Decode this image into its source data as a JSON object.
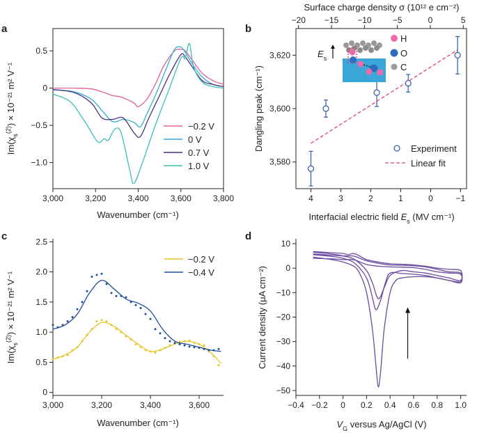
{
  "chart_data": [
    {
      "panel": "a",
      "type": "line",
      "xlabel": "Wavenumber (cm⁻¹)",
      "ylabel": "Im(χs(2)) × 10⁻²¹ m² V⁻¹",
      "xlim": [
        3000,
        3800
      ],
      "ylim": [
        -1.35,
        0.8
      ],
      "xticks": [
        3000,
        3200,
        3400,
        3600,
        3800
      ],
      "xtick_labels": [
        "3,000",
        "3,200",
        "3,400",
        "3,600",
        "3,800"
      ],
      "yticks": [
        0.5,
        0,
        -0.5,
        -1.0
      ],
      "ytick_labels": [
        "0.5",
        "0",
        "−0.5",
        "−1.0"
      ],
      "series": [
        {
          "name": "−0.2 V",
          "color": "#e0609a",
          "x": [
            3000,
            3100,
            3180,
            3230,
            3280,
            3320,
            3380,
            3400,
            3440,
            3480,
            3520,
            3570,
            3600,
            3620,
            3660,
            3700,
            3750,
            3800
          ],
          "y": [
            0,
            0,
            -0.01,
            -0.05,
            -0.1,
            -0.12,
            -0.2,
            -0.25,
            -0.15,
            0.05,
            0.3,
            0.5,
            0.52,
            0.5,
            0.35,
            0.2,
            0.1,
            0.05
          ]
        },
        {
          "name": "0 V",
          "color": "#2fb0d8",
          "x": [
            3000,
            3100,
            3180,
            3230,
            3280,
            3330,
            3380,
            3410,
            3440,
            3480,
            3530,
            3570,
            3600,
            3620,
            3660,
            3700,
            3750,
            3800
          ],
          "y": [
            -0.02,
            -0.05,
            -0.15,
            -0.3,
            -0.45,
            -0.42,
            -0.46,
            -0.52,
            -0.35,
            -0.1,
            0.25,
            0.52,
            0.55,
            0.48,
            0.3,
            0.15,
            0.05,
            0.02
          ]
        },
        {
          "name": "0.7 V",
          "color": "#4c2f7a",
          "x": [
            3000,
            3100,
            3180,
            3230,
            3280,
            3330,
            3380,
            3410,
            3450,
            3500,
            3550,
            3600,
            3620,
            3650,
            3700,
            3750,
            3800
          ],
          "y": [
            -0.02,
            -0.06,
            -0.2,
            -0.4,
            -0.42,
            -0.4,
            -0.6,
            -0.65,
            -0.4,
            -0.1,
            0.2,
            0.45,
            0.42,
            0.3,
            0.1,
            0.05,
            0.02
          ]
        },
        {
          "name": "1.0 V",
          "color": "#3cbfb8",
          "x": [
            3000,
            3080,
            3150,
            3210,
            3240,
            3260,
            3290,
            3320,
            3360,
            3380,
            3420,
            3480,
            3540,
            3600,
            3620,
            3640,
            3660,
            3700,
            3750,
            3800
          ],
          "y": [
            -0.08,
            -0.18,
            -0.45,
            -0.72,
            -0.68,
            -0.7,
            -0.55,
            -0.6,
            -1.1,
            -1.28,
            -1.0,
            -0.5,
            -0.05,
            0.4,
            0.4,
            0.6,
            0.28,
            0.08,
            0.02,
            0
          ]
        }
      ]
    },
    {
      "panel": "b",
      "type": "scatter",
      "xlabel": "Interfacial electric field E_s (MV cm⁻¹)",
      "ylabel": "Dangling peak (cm⁻¹)",
      "top_xlabel": "Surface charge density σ (10¹² e cm⁻²)",
      "xlim": [
        4.5,
        -1.2
      ],
      "ylim": [
        3570,
        3630
      ],
      "xticks": [
        4,
        3,
        2,
        1,
        0,
        -1
      ],
      "xtick_labels": [
        "4",
        "3",
        "2",
        "1",
        "0",
        "−1"
      ],
      "yticks": [
        3580,
        3600,
        3620
      ],
      "ytick_labels": [
        "3,580",
        "3,600",
        "3,620"
      ],
      "top_xticks": [
        -20,
        -15,
        -10,
        -5,
        0,
        5
      ],
      "top_xtick_labels": [
        "−20",
        "−15",
        "−10",
        "−5",
        "0",
        "5"
      ],
      "top_xlim": [
        -20.4,
        5.5
      ],
      "points": [
        {
          "x": 4.0,
          "y": 3577.5,
          "err": 6.5
        },
        {
          "x": 3.5,
          "y": 3600,
          "err": 3.2
        },
        {
          "x": 1.8,
          "y": 3606,
          "err": 5.2
        },
        {
          "x": 0.75,
          "y": 3609.5,
          "err": 3.3
        },
        {
          "x": -0.9,
          "y": 3620,
          "err": 7
        }
      ],
      "fit": {
        "x": [
          4.0,
          -0.9
        ],
        "y": [
          3587,
          3622
        ]
      },
      "legend": {
        "experiment": "Experiment",
        "fit": "Linear fit"
      },
      "inset_labels": {
        "h": "H",
        "o": "O",
        "c": "C",
        "field": "E",
        "field_sub": "s"
      },
      "colors": {
        "points": "#2e5aa8",
        "fit": "#e0407e"
      }
    },
    {
      "panel": "c",
      "type": "line",
      "xlabel": "Wavenumber (cm⁻¹)",
      "ylabel": "Im(χs(2)) × 10⁻²¹ m² V⁻¹",
      "xlim": [
        3000,
        3700
      ],
      "ylim": [
        -0.05,
        2.55
      ],
      "xticks": [
        3000,
        3200,
        3400,
        3600
      ],
      "xtick_labels": [
        "3,000",
        "3,200",
        "3,400",
        "3,600"
      ],
      "yticks": [
        0,
        0.5,
        1.0,
        1.5,
        2.0,
        2.5
      ],
      "ytick_labels": [
        "0",
        "0.5",
        "1.0",
        "1.5",
        "2.0",
        "2.5"
      ],
      "series": [
        {
          "name": "−0.2 V",
          "color": "#e8c52a",
          "x": [
            3000,
            3050,
            3100,
            3150,
            3200,
            3250,
            3300,
            3350,
            3400,
            3450,
            3500,
            3550,
            3600,
            3650,
            3690
          ],
          "y": [
            0.55,
            0.62,
            0.75,
            1.0,
            1.16,
            1.1,
            0.95,
            0.8,
            0.68,
            0.72,
            0.8,
            0.85,
            0.8,
            0.65,
            0.48
          ],
          "points_x": [
            3000,
            3020,
            3040,
            3060,
            3080,
            3100,
            3120,
            3140,
            3160,
            3180,
            3200,
            3220,
            3240,
            3260,
            3280,
            3300,
            3320,
            3340,
            3360,
            3380,
            3400,
            3420,
            3440,
            3460,
            3480,
            3500,
            3520,
            3540,
            3560,
            3580,
            3600,
            3620,
            3640,
            3660,
            3680
          ],
          "points_y": [
            0.55,
            0.58,
            0.6,
            0.62,
            0.7,
            0.75,
            0.85,
            0.95,
            1.05,
            1.18,
            1.2,
            1.18,
            1.12,
            1.05,
            1.0,
            0.93,
            0.88,
            0.8,
            0.75,
            0.7,
            0.68,
            0.66,
            0.7,
            0.74,
            0.78,
            0.82,
            0.84,
            0.85,
            0.86,
            0.82,
            0.8,
            0.78,
            0.68,
            0.6,
            0.45
          ]
        },
        {
          "name": "−0.4 V",
          "color": "#1f4e9a",
          "x": [
            3000,
            3050,
            3100,
            3150,
            3200,
            3250,
            3300,
            3350,
            3400,
            3450,
            3500,
            3550,
            3600,
            3650,
            3690
          ],
          "y": [
            1.05,
            1.12,
            1.3,
            1.65,
            1.86,
            1.72,
            1.55,
            1.48,
            1.35,
            1.05,
            0.85,
            0.8,
            0.75,
            0.7,
            0.68
          ],
          "points_x": [
            3000,
            3020,
            3040,
            3060,
            3080,
            3100,
            3120,
            3140,
            3160,
            3180,
            3200,
            3220,
            3240,
            3260,
            3280,
            3300,
            3320,
            3340,
            3360,
            3380,
            3400,
            3420,
            3440,
            3460,
            3480,
            3500,
            3520,
            3540,
            3560,
            3580,
            3600,
            3620,
            3640,
            3660,
            3680
          ],
          "points_y": [
            1.12,
            1.08,
            1.12,
            1.18,
            1.25,
            1.38,
            1.5,
            1.68,
            1.92,
            1.95,
            1.97,
            1.8,
            1.65,
            1.6,
            1.6,
            1.58,
            1.5,
            1.45,
            1.4,
            1.3,
            1.22,
            1.05,
            0.98,
            0.9,
            0.85,
            0.82,
            0.8,
            0.78,
            0.76,
            0.75,
            0.74,
            0.72,
            0.7,
            0.7,
            0.72
          ]
        }
      ]
    },
    {
      "panel": "d",
      "type": "line",
      "xlabel": "V_G versus Ag/AgCl (V)",
      "ylabel": "Current density (μA cm⁻²)",
      "xlim": [
        -0.4,
        1.05
      ],
      "ylim": [
        -52,
        12
      ],
      "xticks": [
        -0.4,
        -0.2,
        0,
        0.2,
        0.4,
        0.6,
        0.8,
        1.0
      ],
      "xtick_labels": [
        "−0.4",
        "−0.2",
        "0",
        "0.2",
        "0.4",
        "0.6",
        "0.8",
        "1.0"
      ],
      "yticks": [
        10,
        0,
        -10,
        -20,
        -30,
        -40,
        -50
      ],
      "ytick_labels": [
        "10",
        "0",
        "−10",
        "−20",
        "−30",
        "−40",
        "−50"
      ],
      "color": "#6a4ba0",
      "arrow": {
        "x": 0.55,
        "y_from": -37,
        "y_to": -16
      },
      "cycles": [
        {
          "x": [
            -0.25,
            -0.1,
            0,
            0.1,
            0.2,
            0.25,
            0.3,
            0.35,
            0.4,
            0.5,
            0.6,
            0.7,
            0.8,
            0.9,
            1.0,
            1.0,
            0.9,
            0.8,
            0.7,
            0.6,
            0.5,
            0.4,
            0.3,
            0.2,
            0.12,
            0.08,
            0.05,
            0,
            -0.1,
            -0.25
          ],
          "y": [
            6.5,
            5.8,
            5,
            3.5,
            -1,
            -6,
            -12.5,
            -8,
            -3,
            -1,
            -1.5,
            -2,
            -3,
            -4,
            -5,
            -1,
            -0.5,
            0,
            0.8,
            1.3,
            1.6,
            1.8,
            2.5,
            3.5,
            5.5,
            6,
            5.5,
            6,
            6.3,
            6.8
          ]
        },
        {
          "x": [
            -0.25,
            -0.1,
            0,
            0.1,
            0.2,
            0.25,
            0.28,
            0.32,
            0.36,
            0.4,
            0.5,
            0.6,
            0.7,
            0.8,
            0.9,
            1.0,
            1.0,
            0.9,
            0.8,
            0.7,
            0.6,
            0.5,
            0.4,
            0.3,
            0.2,
            0.12,
            0.08,
            0.05,
            0,
            -0.1,
            -0.25
          ],
          "y": [
            5.5,
            4.8,
            4,
            2,
            -4,
            -12,
            -17,
            -13,
            -6,
            -2,
            -2.2,
            -2.5,
            -3,
            -4,
            -5,
            -5.5,
            -2,
            -1.5,
            -0.5,
            0.5,
            1,
            1.2,
            1.3,
            2,
            3,
            4.5,
            5,
            5,
            5,
            5.3,
            5.8
          ]
        },
        {
          "x": [
            -0.25,
            -0.1,
            0,
            0.1,
            0.15,
            0.2,
            0.25,
            0.28,
            0.3,
            0.32,
            0.35,
            0.4,
            0.45,
            0.5,
            0.6,
            0.7,
            0.8,
            0.9,
            1.0,
            1.0,
            0.9,
            0.8,
            0.7,
            0.6,
            0.5,
            0.4,
            0.3,
            0.2,
            0.12,
            0.08,
            0.05,
            0,
            -0.1,
            -0.25
          ],
          "y": [
            4.5,
            3.5,
            2.5,
            0.5,
            -3,
            -10,
            -25,
            -40,
            -48.5,
            -42,
            -25,
            -10,
            -5,
            -4,
            -3.5,
            -3.5,
            -4,
            -5,
            -6,
            -2.5,
            -2,
            -1.5,
            -0.5,
            0.2,
            0.4,
            0.5,
            0.8,
            1.5,
            3,
            3.5,
            3.5,
            3.5,
            3.8,
            4
          ]
        }
      ]
    }
  ],
  "labels": {
    "panel_a": "a",
    "panel_b": "b",
    "panel_c": "c",
    "panel_d": "d",
    "wavenumber": "Wavenumber (cm⁻¹)",
    "im_chi_prefix": "Im(χ",
    "im_chi_sub": "s",
    "im_chi_sup": "(2)",
    "im_chi_suffix": ") × 10⁻²¹ m² V⁻¹",
    "dangling_peak": "Dangling peak (cm⁻¹)",
    "surface_charge": "Surface charge density σ (10¹² e cm⁻²)",
    "field_prefix": "Interfacial electric field ",
    "field_E": "E",
    "field_sub": "s",
    "field_suffix": " (MV cm⁻¹)",
    "current_density": "Current density (μA cm⁻²)",
    "vg_V": "V",
    "vg_sub": "G",
    "vg_suffix": " versus Ag/AgCl (V)"
  }
}
